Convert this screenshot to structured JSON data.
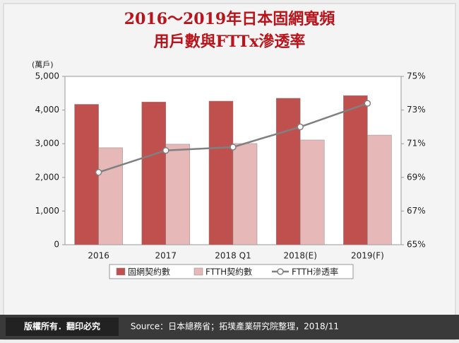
{
  "chart_data": {
    "type": "bar_line",
    "title": [
      "2016～2019年日本固網寬頻",
      "用戶數與FTTx滲透率"
    ],
    "y_unit": "(萬戶)",
    "categories": [
      "2016",
      "2017",
      "2018 Q1",
      "2018(E)",
      "2019(F)"
    ],
    "series": [
      {
        "name": "固網契約數",
        "color": "#c0504d",
        "type": "bar",
        "values": [
          4170,
          4240,
          4265,
          4350,
          4430
        ]
      },
      {
        "name": "FTTH契約數",
        "color": "#e6b8b7",
        "type": "bar",
        "values": [
          2880,
          2985,
          3005,
          3110,
          3255
        ]
      },
      {
        "name": "FTTH滲透率",
        "color": "#808080",
        "type": "line",
        "axis": "y2",
        "values": [
          69.3,
          70.6,
          70.8,
          72.0,
          73.4
        ]
      }
    ],
    "ylim": [
      0,
      5000
    ],
    "yticks": [
      0,
      {
        "value": 1000,
        "label": "1,000"
      },
      {
        "value": 2000,
        "label": "2,000"
      },
      {
        "value": 3000,
        "label": "3,000"
      },
      {
        "value": 4000,
        "label": "4,000"
      },
      {
        "value": 5000,
        "label": "5,000"
      }
    ],
    "y2lim": [
      65,
      75
    ],
    "y2ticks": [
      {
        "value": 65,
        "label": "65%"
      },
      {
        "value": 67,
        "label": "67%"
      },
      {
        "value": 69,
        "label": "69%"
      },
      {
        "value": 71,
        "label": "71%"
      },
      {
        "value": 73,
        "label": "73%"
      },
      {
        "value": 75,
        "label": "75%"
      }
    ]
  },
  "footer": {
    "copyright": "版權所有．翻印必究",
    "source": "Source：日本總務省；拓墣產業研究院整理，2018/11"
  }
}
